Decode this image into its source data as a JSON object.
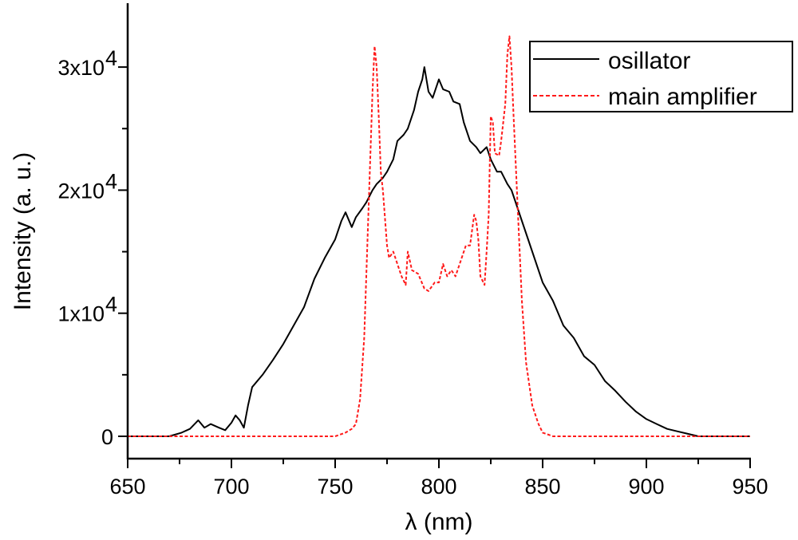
{
  "chart_data": {
    "type": "line",
    "title": "",
    "xlabel": "λ (nm)",
    "ylabel": "Intensity (a. u.)",
    "xlim": [
      650,
      950
    ],
    "ylim": [
      -1800,
      35100
    ],
    "x_ticks": [
      650,
      700,
      750,
      800,
      850,
      900,
      950
    ],
    "x_tick_labels": [
      "650",
      "700",
      "750",
      "800",
      "850",
      "900",
      "950"
    ],
    "y_ticks": [
      0,
      10000,
      20000,
      30000
    ],
    "y_tick_labels": [
      {
        "base": "0",
        "exp": ""
      },
      {
        "base": "1x10",
        "exp": "4"
      },
      {
        "base": "2x10",
        "exp": "4"
      },
      {
        "base": "3x10",
        "exp": "4"
      }
    ],
    "grid": false,
    "legend_position": "top-right",
    "series": [
      {
        "name": "osillator",
        "color": "#000000",
        "style": "solid",
        "x": [
          650,
          670,
          676,
          680,
          684,
          687,
          690,
          694,
          697,
          700,
          702,
          704,
          706,
          708,
          710,
          715,
          720,
          725,
          730,
          735,
          740,
          745,
          750,
          753,
          755,
          758,
          760,
          763,
          765,
          768,
          770,
          773,
          775,
          778,
          780,
          783,
          785,
          788,
          790,
          792,
          793,
          795,
          797,
          799,
          800,
          802,
          805,
          807,
          810,
          812,
          815,
          818,
          820,
          823,
          825,
          828,
          830,
          833,
          835,
          838,
          840,
          845,
          850,
          855,
          860,
          865,
          870,
          875,
          880,
          885,
          890,
          895,
          900,
          905,
          910,
          915,
          920,
          925,
          930,
          950
        ],
        "y": [
          0,
          0,
          300,
          600,
          1300,
          700,
          1000,
          700,
          500,
          1100,
          1700,
          1300,
          700,
          2500,
          4000,
          5000,
          6200,
          7500,
          9000,
          10500,
          12800,
          14500,
          16000,
          17500,
          18200,
          17000,
          17800,
          18500,
          19000,
          20000,
          20500,
          21000,
          21500,
          22500,
          24000,
          24500,
          25000,
          26500,
          28000,
          29000,
          30000,
          28000,
          27500,
          28500,
          29000,
          28200,
          28000,
          27200,
          27000,
          25500,
          24000,
          23500,
          23000,
          23500,
          22500,
          21500,
          21500,
          20500,
          20000,
          18500,
          17500,
          15000,
          12500,
          11000,
          9000,
          8000,
          6500,
          5800,
          4500,
          3700,
          2800,
          2000,
          1400,
          1000,
          600,
          400,
          200,
          0,
          0,
          0
        ]
      },
      {
        "name": "main amplifier",
        "color": "#ff1a1a",
        "style": "dashed",
        "x": [
          650,
          750,
          755,
          758,
          760,
          762,
          764,
          766,
          768,
          769,
          770,
          771,
          772,
          773,
          775,
          776,
          778,
          780,
          782,
          784,
          785,
          787,
          790,
          793,
          795,
          798,
          800,
          802,
          804,
          806,
          808,
          810,
          813,
          815,
          817,
          818,
          819,
          820,
          822,
          823,
          824,
          825,
          826,
          827,
          829,
          830,
          832,
          833,
          834,
          835,
          836,
          838,
          840,
          842,
          845,
          848,
          850,
          855,
          950
        ],
        "y": [
          0,
          0,
          300,
          600,
          1000,
          3000,
          8000,
          18000,
          28000,
          31700,
          30000,
          26000,
          21500,
          20000,
          15500,
          14500,
          15000,
          14000,
          13000,
          12300,
          15000,
          13500,
          13200,
          12000,
          11800,
          12500,
          12500,
          14000,
          13000,
          13500,
          13000,
          14000,
          15500,
          15500,
          18000,
          17500,
          16000,
          13000,
          12300,
          15000,
          18000,
          26000,
          25500,
          23000,
          22800,
          24000,
          27000,
          31000,
          32500,
          30000,
          26000,
          18500,
          11000,
          6000,
          2500,
          1000,
          300,
          0,
          0
        ]
      }
    ]
  }
}
